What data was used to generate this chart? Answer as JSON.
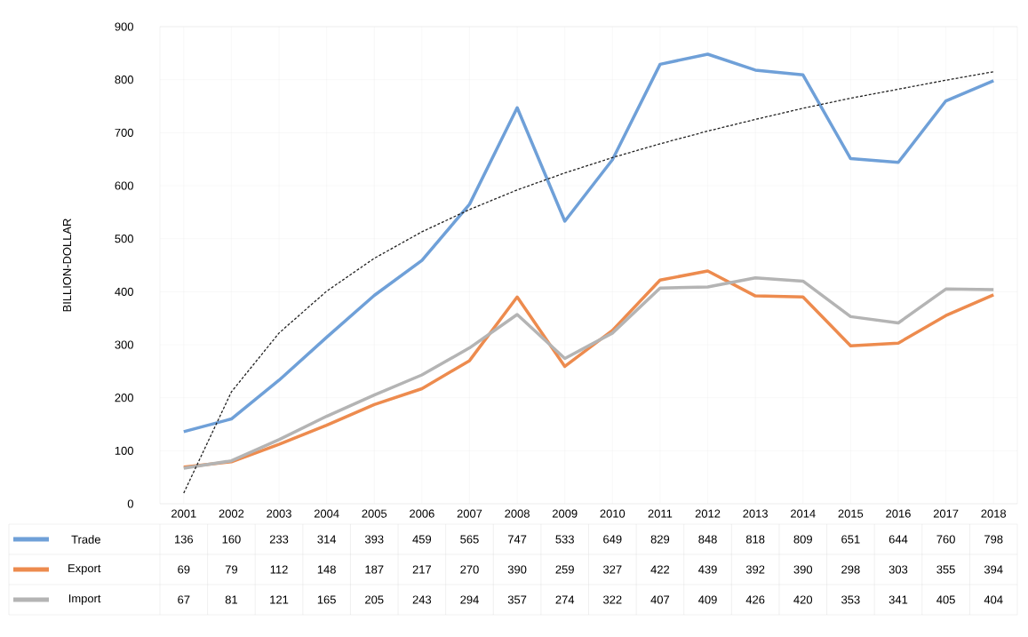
{
  "chart_data": {
    "type": "line",
    "ylabel": "BILLION-DOLLAR",
    "categories": [
      "2001",
      "2002",
      "2003",
      "2004",
      "2005",
      "2006",
      "2007",
      "2008",
      "2009",
      "2010",
      "2011",
      "2012",
      "2013",
      "2014",
      "2015",
      "2016",
      "2017",
      "2018"
    ],
    "series": [
      {
        "name": "Trade",
        "color": "#6fa0d8",
        "values": [
          136,
          160,
          233,
          314,
          393,
          459,
          565,
          747,
          533,
          649,
          829,
          848,
          818,
          809,
          651,
          644,
          760,
          798
        ],
        "value_labels": [
          "136",
          "160",
          "233",
          "314",
          "393",
          "459",
          "565",
          "747",
          "533",
          "649",
          "829",
          "848",
          "818",
          "809",
          "651",
          "644",
          "760",
          "798"
        ]
      },
      {
        "name": "Export",
        "color": "#ed8b4e",
        "values": [
          69,
          79,
          112,
          148,
          187,
          217,
          270,
          390,
          259,
          327,
          422,
          439,
          392,
          390,
          298,
          303,
          355,
          394
        ],
        "value_labels": [
          "69",
          "79",
          "112",
          "148",
          "187",
          "217",
          "270",
          "390",
          "259",
          "327",
          "422",
          "439",
          "392",
          "390",
          "298",
          "303",
          "355",
          "394"
        ]
      },
      {
        "name": "Import",
        "color": "#b4b4b4",
        "values": [
          67,
          81,
          121,
          165,
          205,
          243,
          294,
          357,
          274,
          322,
          407,
          409,
          426,
          420,
          353,
          341,
          405,
          404
        ],
        "value_labels": [
          "67",
          "81",
          "121",
          "165",
          "205",
          "243",
          "294",
          "357",
          "274",
          "322",
          "407",
          "409",
          "426",
          "420",
          "353",
          "341",
          "405",
          "404"
        ]
      },
      {
        "color": "#222222",
        "line_style": "dashed",
        "values": [
          20,
          211,
          322,
          401,
          463,
          513,
          555,
          592,
          624,
          653,
          679,
          703,
          725,
          746,
          765,
          782,
          799,
          815
        ]
      }
    ],
    "ylim": [
      0,
      900
    ],
    "yticks": [
      0,
      100,
      200,
      300,
      400,
      500,
      600,
      700,
      800,
      900
    ],
    "grid": true,
    "legend": "bottom"
  }
}
